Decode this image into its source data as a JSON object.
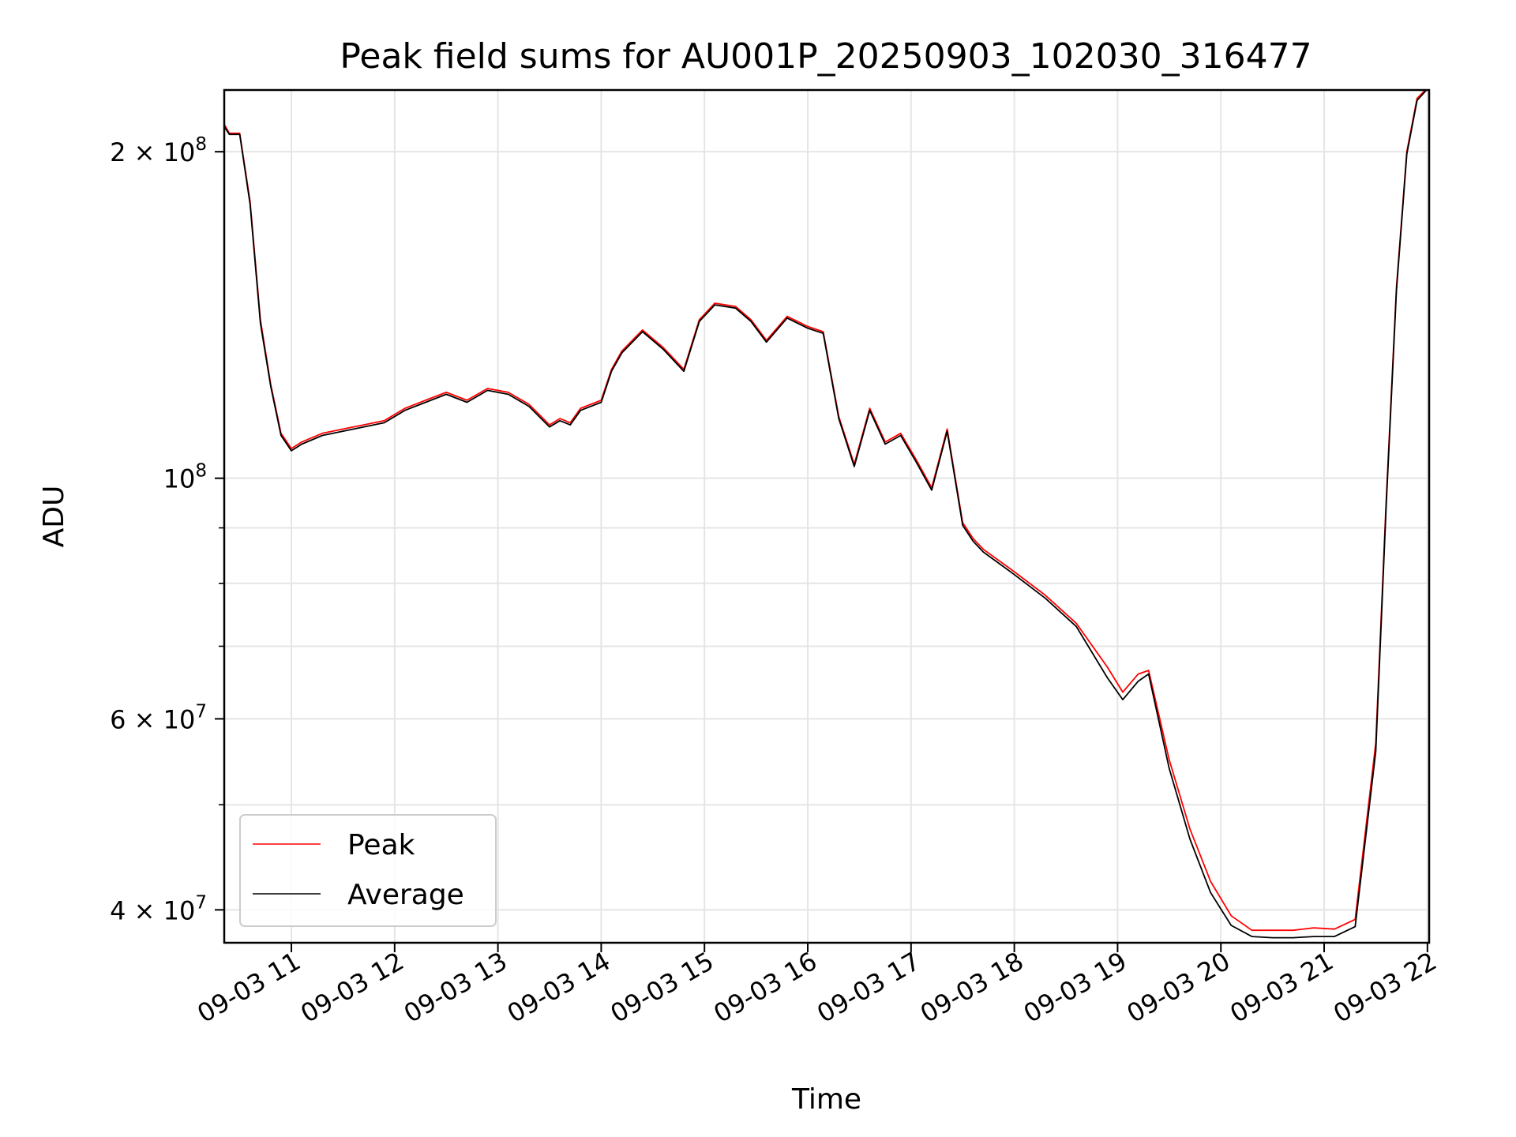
{
  "chart_data": {
    "type": "line",
    "title": "Peak field sums for AU001P_20250903_102030_316477",
    "xlabel": "Time",
    "ylabel": "ADU",
    "y_scale": "log",
    "xlim": [
      "09-03 10:21",
      "09-03 22:01"
    ],
    "ylim": [
      37300000,
      228000000
    ],
    "x_ticks": [
      "09-03 11",
      "09-03 12",
      "09-03 13",
      "09-03 14",
      "09-03 15",
      "09-03 16",
      "09-03 17",
      "09-03 18",
      "09-03 19",
      "09-03 20",
      "09-03 21",
      "09-03 22"
    ],
    "y_ticks": [
      {
        "value": 40000000,
        "base": "4 × 10",
        "exp": "7"
      },
      {
        "value": 60000000,
        "base": "6 × 10",
        "exp": "7"
      },
      {
        "value": 100000000,
        "base": "10",
        "exp": "8"
      },
      {
        "value": 200000000,
        "base": "2 × 10",
        "exp": "8"
      }
    ],
    "y_minor_ticks": [
      50000000,
      70000000,
      80000000,
      90000000
    ],
    "grid": true,
    "legend_position": "lower-left",
    "series": [
      {
        "name": "Peak",
        "color": "#ff0000",
        "x": [
          "09-03 10:21",
          "09-03 10:24",
          "09-03 10:30",
          "09-03 10:36",
          "09-03 10:42",
          "09-03 10:48",
          "09-03 10:54",
          "09-03 11:00",
          "09-03 11:06",
          "09-03 11:18",
          "09-03 11:30",
          "09-03 11:42",
          "09-03 11:54",
          "09-03 12:06",
          "09-03 12:18",
          "09-03 12:30",
          "09-03 12:42",
          "09-03 12:54",
          "09-03 13:06",
          "09-03 13:18",
          "09-03 13:30",
          "09-03 13:36",
          "09-03 13:42",
          "09-03 13:48",
          "09-03 14:00",
          "09-03 14:06",
          "09-03 14:12",
          "09-03 14:24",
          "09-03 14:36",
          "09-03 14:48",
          "09-03 14:57",
          "09-03 15:06",
          "09-03 15:18",
          "09-03 15:27",
          "09-03 15:36",
          "09-03 15:48",
          "09-03 16:00",
          "09-03 16:09",
          "09-03 16:18",
          "09-03 16:27",
          "09-03 16:36",
          "09-03 16:45",
          "09-03 16:54",
          "09-03 17:03",
          "09-03 17:12",
          "09-03 17:21",
          "09-03 17:30",
          "09-03 17:36",
          "09-03 17:42",
          "09-03 18:00",
          "09-03 18:18",
          "09-03 18:36",
          "09-03 18:54",
          "09-03 19:03",
          "09-03 19:12",
          "09-03 19:18",
          "09-03 19:30",
          "09-03 19:42",
          "09-03 19:54",
          "09-03 20:06",
          "09-03 20:18",
          "09-03 20:30",
          "09-03 20:42",
          "09-03 20:54",
          "09-03 21:06",
          "09-03 21:18",
          "09-03 21:30",
          "09-03 21:36",
          "09-03 21:42",
          "09-03 21:48",
          "09-03 21:54",
          "09-03 22:00"
        ],
        "y": [
          212000000,
          208000000,
          208000000,
          180000000,
          140000000,
          122000000,
          110000000,
          106500000,
          108000000,
          110000000,
          111000000,
          112000000,
          113000000,
          116000000,
          118000000,
          120000000,
          118000000,
          121000000,
          120000000,
          117000000,
          112000000,
          113500000,
          112500000,
          116000000,
          118000000,
          126000000,
          131000000,
          137000000,
          132000000,
          126000000,
          140000000,
          145000000,
          144000000,
          140000000,
          134000000,
          141000000,
          138000000,
          136500000,
          114000000,
          103000000,
          116000000,
          108000000,
          110000000,
          104000000,
          98000000,
          111000000,
          91000000,
          88000000,
          86000000,
          82000000,
          78000000,
          73500000,
          67000000,
          63500000,
          66000000,
          66500000,
          55000000,
          47500000,
          42500000,
          39500000,
          38300000,
          38300000,
          38300000,
          38500000,
          38400000,
          39200000,
          57000000,
          95000000,
          150000000,
          200000000,
          224000000,
          229000000
        ]
      },
      {
        "name": "Average",
        "color": "#000000",
        "x": [
          "09-03 10:21",
          "09-03 10:24",
          "09-03 10:30",
          "09-03 10:36",
          "09-03 10:42",
          "09-03 10:48",
          "09-03 10:54",
          "09-03 11:00",
          "09-03 11:06",
          "09-03 11:18",
          "09-03 11:30",
          "09-03 11:42",
          "09-03 11:54",
          "09-03 12:06",
          "09-03 12:18",
          "09-03 12:30",
          "09-03 12:42",
          "09-03 12:54",
          "09-03 13:06",
          "09-03 13:18",
          "09-03 13:30",
          "09-03 13:36",
          "09-03 13:42",
          "09-03 13:48",
          "09-03 14:00",
          "09-03 14:06",
          "09-03 14:12",
          "09-03 14:24",
          "09-03 14:36",
          "09-03 14:48",
          "09-03 14:57",
          "09-03 15:06",
          "09-03 15:18",
          "09-03 15:27",
          "09-03 15:36",
          "09-03 15:48",
          "09-03 16:00",
          "09-03 16:09",
          "09-03 16:18",
          "09-03 16:27",
          "09-03 16:36",
          "09-03 16:45",
          "09-03 16:54",
          "09-03 17:03",
          "09-03 17:12",
          "09-03 17:21",
          "09-03 17:30",
          "09-03 17:36",
          "09-03 17:42",
          "09-03 18:00",
          "09-03 18:18",
          "09-03 18:36",
          "09-03 18:54",
          "09-03 19:03",
          "09-03 19:12",
          "09-03 19:18",
          "09-03 19:30",
          "09-03 19:42",
          "09-03 19:54",
          "09-03 20:06",
          "09-03 20:18",
          "09-03 20:30",
          "09-03 20:42",
          "09-03 20:54",
          "09-03 21:06",
          "09-03 21:18",
          "09-03 21:30",
          "09-03 21:36",
          "09-03 21:42",
          "09-03 21:48",
          "09-03 21:54",
          "09-03 22:00"
        ],
        "y": [
          211000000,
          207500000,
          207500000,
          179000000,
          139000000,
          121500000,
          109500000,
          106000000,
          107500000,
          109500000,
          110500000,
          111500000,
          112500000,
          115500000,
          117500000,
          119500000,
          117500000,
          120500000,
          119500000,
          116500000,
          111500000,
          113000000,
          112000000,
          115500000,
          117500000,
          125500000,
          130500000,
          136500000,
          131500000,
          125500000,
          139500000,
          144500000,
          143500000,
          139500000,
          133500000,
          140500000,
          137500000,
          136000000,
          113500000,
          102500000,
          115500000,
          107500000,
          109500000,
          103500000,
          97500000,
          110500000,
          90500000,
          87500000,
          85500000,
          81500000,
          77500000,
          73000000,
          65500000,
          62500000,
          65000000,
          66000000,
          54000000,
          46500000,
          41500000,
          38700000,
          37800000,
          37700000,
          37700000,
          37800000,
          37800000,
          38600000,
          56000000,
          94000000,
          149000000,
          199000000,
          223000000,
          228500000
        ]
      }
    ]
  }
}
